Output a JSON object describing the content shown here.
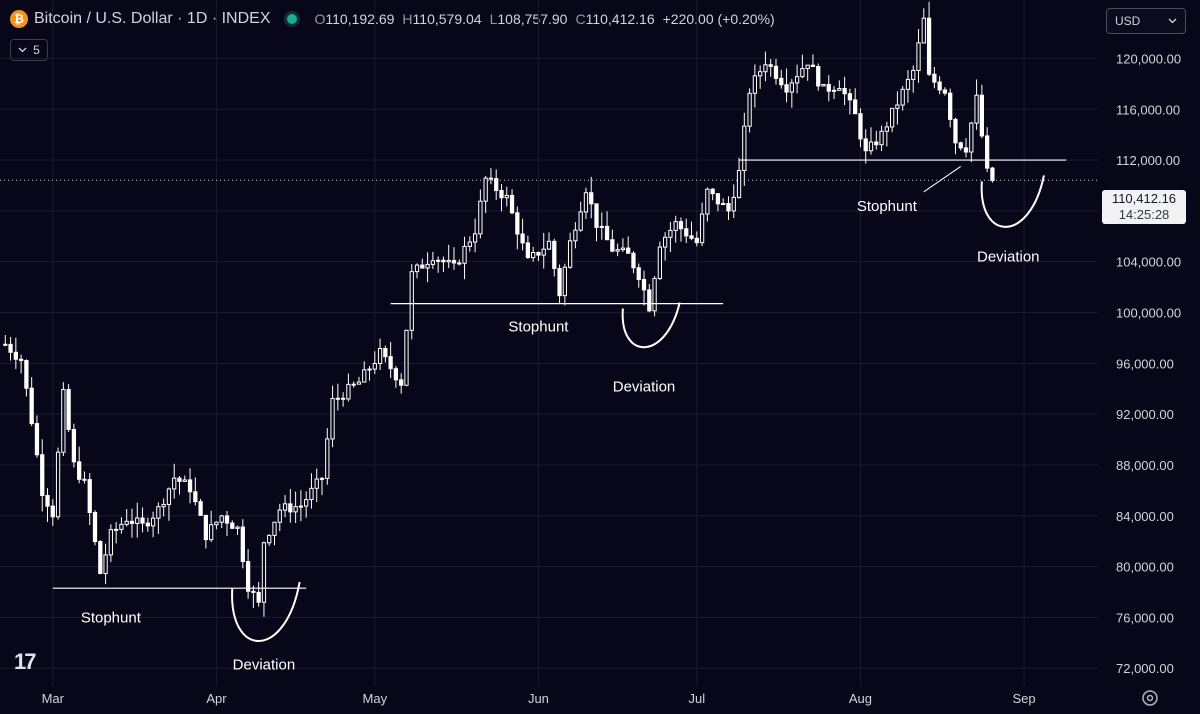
{
  "header": {
    "coin_icon": "bitcoin-icon",
    "symbol": "Bitcoin / U.S. Dollar · 1D · INDEX",
    "status_color": "#22ab94",
    "open_label": "O",
    "open": "110,192.69",
    "high_label": "H",
    "high": "110,579.04",
    "low_label": "L",
    "low": "108,757.90",
    "close_label": "C",
    "close": "110,412.16",
    "change": "+220.00 (+0.20%)"
  },
  "indicators_toggle": {
    "icon": "chevron-down-icon",
    "count": "5"
  },
  "currency": {
    "label": "USD",
    "icon": "chevron-down-icon"
  },
  "price_tag": {
    "price": "110,412.16",
    "countdown": "14:25:28"
  },
  "colors": {
    "background": "#080619",
    "candle": "#ffffff",
    "grid": "#1c1b2e",
    "axis_text": "#d1d4dc"
  },
  "chart_data": {
    "type": "candlestick",
    "title": "Bitcoin / U.S. Dollar · 1D · INDEX",
    "y_ticks": [
      "72,000.00",
      "76,000.00",
      "80,000.00",
      "84,000.00",
      "88,000.00",
      "92,000.00",
      "96,000.00",
      "100,000.00",
      "104,000.00",
      "108,000.00",
      "112,000.00",
      "116,000.00",
      "120,000.00"
    ],
    "y_tick_values": [
      72000,
      76000,
      80000,
      84000,
      88000,
      92000,
      96000,
      100000,
      104000,
      108000,
      112000,
      116000,
      120000
    ],
    "ylim": [
      70600,
      124600
    ],
    "x_range": [
      "2025-02-19",
      "2025-09-15"
    ],
    "x_ticks": [
      {
        "label": "Mar",
        "date": "2025-03-01"
      },
      {
        "label": "Apr",
        "date": "2025-04-01"
      },
      {
        "label": "May",
        "date": "2025-05-01"
      },
      {
        "label": "Jun",
        "date": "2025-06-01"
      },
      {
        "label": "Jul",
        "date": "2025-07-01"
      },
      {
        "label": "Aug",
        "date": "2025-08-01"
      },
      {
        "label": "Sep",
        "date": "2025-09-01"
      }
    ],
    "last_price": 110412.16,
    "grid": true,
    "series_anchors": [
      [
        "2025-02-20",
        97500
      ],
      [
        "2025-02-23",
        96300
      ],
      [
        "2025-02-25",
        91500
      ],
      [
        "2025-02-27",
        86000
      ],
      [
        "2025-03-01",
        84200
      ],
      [
        "2025-03-03",
        93500
      ],
      [
        "2025-03-05",
        88000
      ],
      [
        "2025-03-07",
        86500
      ],
      [
        "2025-03-10",
        79500
      ],
      [
        "2025-03-12",
        82500
      ],
      [
        "2025-03-15",
        83800
      ],
      [
        "2025-03-18",
        83200
      ],
      [
        "2025-03-21",
        84500
      ],
      [
        "2025-03-24",
        87000
      ],
      [
        "2025-03-27",
        86200
      ],
      [
        "2025-03-30",
        82500
      ],
      [
        "2025-04-02",
        84000
      ],
      [
        "2025-04-05",
        83000
      ],
      [
        "2025-04-07",
        78500
      ],
      [
        "2025-04-09",
        77000
      ],
      [
        "2025-04-10",
        82000
      ],
      [
        "2025-04-13",
        84500
      ],
      [
        "2025-04-17",
        84800
      ],
      [
        "2025-04-21",
        87000
      ],
      [
        "2025-04-23",
        93000
      ],
      [
        "2025-04-28",
        94500
      ],
      [
        "2025-05-02",
        96800
      ],
      [
        "2025-05-06",
        94500
      ],
      [
        "2025-05-08",
        103000
      ],
      [
        "2025-05-12",
        104500
      ],
      [
        "2025-05-16",
        103500
      ],
      [
        "2025-05-20",
        106500
      ],
      [
        "2025-05-22",
        110500
      ],
      [
        "2025-05-26",
        109000
      ],
      [
        "2025-05-30",
        104000
      ],
      [
        "2025-06-03",
        105500
      ],
      [
        "2025-06-05",
        101500
      ],
      [
        "2025-06-07",
        105500
      ],
      [
        "2025-06-10",
        109800
      ],
      [
        "2025-06-12",
        107000
      ],
      [
        "2025-06-15",
        105000
      ],
      [
        "2025-06-18",
        104500
      ],
      [
        "2025-06-20",
        103000
      ],
      [
        "2025-06-22",
        100500
      ],
      [
        "2025-06-24",
        105500
      ],
      [
        "2025-06-27",
        107000
      ],
      [
        "2025-07-01",
        105500
      ],
      [
        "2025-07-03",
        109500
      ],
      [
        "2025-07-07",
        108000
      ],
      [
        "2025-07-09",
        111000
      ],
      [
        "2025-07-11",
        117500
      ],
      [
        "2025-07-14",
        119800
      ],
      [
        "2025-07-18",
        117800
      ],
      [
        "2025-07-22",
        119800
      ],
      [
        "2025-07-25",
        117500
      ],
      [
        "2025-07-28",
        118000
      ],
      [
        "2025-07-31",
        115500
      ],
      [
        "2025-08-02",
        112500
      ],
      [
        "2025-08-05",
        114000
      ],
      [
        "2025-08-08",
        116500
      ],
      [
        "2025-08-11",
        119000
      ],
      [
        "2025-08-13",
        123000
      ],
      [
        "2025-08-14",
        118500
      ],
      [
        "2025-08-17",
        117500
      ],
      [
        "2025-08-19",
        113500
      ],
      [
        "2025-08-21",
        113000
      ],
      [
        "2025-08-23",
        116800
      ],
      [
        "2025-08-25",
        111000
      ],
      [
        "2025-08-26",
        110400
      ]
    ],
    "annotations": [
      {
        "text": "Stophunt",
        "level": 78300,
        "from": "2025-03-01",
        "to": "2025-04-18",
        "label_at": "2025-03-12",
        "label_y": 75600
      },
      {
        "text": "Deviation",
        "label_at": "2025-04-10",
        "label_y": 71900,
        "arc_from": "2025-04-04",
        "arc_to": "2025-04-16",
        "arc_top": 78000,
        "arc_bottom": 73700
      },
      {
        "text": "Stophunt",
        "level": 100700,
        "from": "2025-05-04",
        "to": "2025-07-06",
        "label_at": "2025-06-01",
        "label_y": 98500
      },
      {
        "text": "Deviation",
        "label_at": "2025-06-21",
        "label_y": 93800,
        "arc_from": "2025-06-17",
        "arc_to": "2025-06-27",
        "arc_top": 100000,
        "arc_bottom": 97200
      },
      {
        "text": "Stophunt",
        "level": 112000,
        "from": "2025-07-09",
        "to": "2025-09-09",
        "label_at": "2025-08-06",
        "label_y": 108000,
        "pointer_from": [
          "2025-08-13",
          109500
        ],
        "pointer_to": [
          "2025-08-20",
          111500
        ]
      },
      {
        "text": "Deviation",
        "label_at": "2025-08-29",
        "label_y": 104000,
        "arc_from": "2025-08-24",
        "arc_to": "2025-09-04",
        "arc_top": 110000,
        "arc_bottom": 106500
      }
    ]
  }
}
